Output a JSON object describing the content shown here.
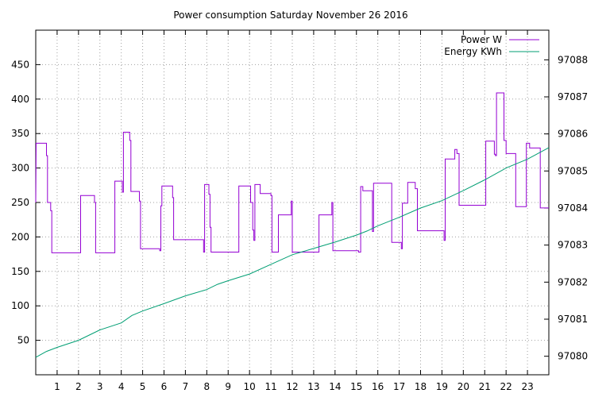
{
  "chart_data": {
    "type": "line",
    "title": "Power consumption Saturday November 26 2016",
    "xlabel": "",
    "ylabel": "",
    "y2label": "",
    "grid": true,
    "legend_position": "top-right",
    "xlim": [
      0,
      24
    ],
    "ylim": [
      0,
      500
    ],
    "y2lim": [
      97079.5,
      97088.8
    ],
    "x_ticks": [
      "1",
      "2",
      "3",
      "4",
      "5",
      "6",
      "7",
      "8",
      "9",
      "10",
      "11",
      "12",
      "13",
      "14",
      "15",
      "16",
      "17",
      "18",
      "19",
      "20",
      "21",
      "22",
      "23"
    ],
    "y_ticks": [
      "50",
      "100",
      "150",
      "200",
      "250",
      "300",
      "350",
      "400",
      "450"
    ],
    "y2_ticks": [
      "97080",
      "97081",
      "97082",
      "97083",
      "97084",
      "97085",
      "97086",
      "97087",
      "97088"
    ],
    "series": [
      {
        "name": "Power W",
        "axis": "y",
        "color": "#9400d3",
        "points": [
          [
            0.0,
            250
          ],
          [
            0.02,
            336
          ],
          [
            0.5,
            336
          ],
          [
            0.5,
            318
          ],
          [
            0.55,
            318
          ],
          [
            0.55,
            250
          ],
          [
            0.7,
            250
          ],
          [
            0.7,
            238
          ],
          [
            0.75,
            238
          ],
          [
            0.75,
            177
          ],
          [
            2.1,
            177
          ],
          [
            2.1,
            260
          ],
          [
            2.75,
            260
          ],
          [
            2.75,
            250
          ],
          [
            2.8,
            250
          ],
          [
            2.8,
            177
          ],
          [
            3.7,
            177
          ],
          [
            3.7,
            281
          ],
          [
            4.05,
            281
          ],
          [
            4.05,
            265
          ],
          [
            4.1,
            265
          ],
          [
            4.1,
            352
          ],
          [
            4.4,
            352
          ],
          [
            4.4,
            340
          ],
          [
            4.45,
            340
          ],
          [
            4.45,
            266
          ],
          [
            4.85,
            266
          ],
          [
            4.85,
            252
          ],
          [
            4.9,
            252
          ],
          [
            4.9,
            183
          ],
          [
            5.8,
            183
          ],
          [
            5.8,
            180
          ],
          [
            5.85,
            180
          ],
          [
            5.85,
            245
          ],
          [
            5.9,
            245
          ],
          [
            5.9,
            274
          ],
          [
            6.4,
            274
          ],
          [
            6.4,
            257
          ],
          [
            6.45,
            257
          ],
          [
            6.45,
            196
          ],
          [
            7.85,
            196
          ],
          [
            7.85,
            178
          ],
          [
            7.9,
            178
          ],
          [
            7.9,
            276
          ],
          [
            8.1,
            276
          ],
          [
            8.1,
            262
          ],
          [
            8.15,
            262
          ],
          [
            8.15,
            214
          ],
          [
            8.2,
            214
          ],
          [
            8.2,
            178
          ],
          [
            9.5,
            178
          ],
          [
            9.5,
            274
          ],
          [
            10.05,
            274
          ],
          [
            10.05,
            250
          ],
          [
            10.15,
            250
          ],
          [
            10.15,
            210
          ],
          [
            10.2,
            210
          ],
          [
            10.2,
            195
          ],
          [
            10.25,
            195
          ],
          [
            10.25,
            276
          ],
          [
            10.5,
            276
          ],
          [
            10.5,
            263
          ],
          [
            11,
            263
          ],
          [
            11,
            260
          ],
          [
            11.05,
            260
          ],
          [
            11.05,
            178
          ],
          [
            11.35,
            178
          ],
          [
            11.35,
            232
          ],
          [
            11.95,
            232
          ],
          [
            11.95,
            252
          ],
          [
            12.0,
            252
          ],
          [
            12.0,
            178
          ],
          [
            13.25,
            178
          ],
          [
            13.25,
            232
          ],
          [
            13.85,
            232
          ],
          [
            13.85,
            250
          ],
          [
            13.9,
            250
          ],
          [
            13.9,
            180
          ],
          [
            15.1,
            180
          ],
          [
            15.1,
            178
          ],
          [
            15.2,
            178
          ],
          [
            15.2,
            273
          ],
          [
            15.3,
            273
          ],
          [
            15.3,
            267
          ],
          [
            15.75,
            267
          ],
          [
            15.75,
            208
          ],
          [
            15.8,
            208
          ],
          [
            15.8,
            278
          ],
          [
            16.65,
            278
          ],
          [
            16.65,
            192
          ],
          [
            17.1,
            192
          ],
          [
            17.1,
            183
          ],
          [
            17.15,
            183
          ],
          [
            17.15,
            249
          ],
          [
            17.4,
            249
          ],
          [
            17.4,
            279
          ],
          [
            17.75,
            279
          ],
          [
            17.75,
            270
          ],
          [
            17.8,
            270
          ],
          [
            17.8,
            270
          ],
          [
            17.85,
            270
          ],
          [
            17.85,
            209
          ],
          [
            19.1,
            209
          ],
          [
            19.1,
            195
          ],
          [
            19.15,
            195
          ],
          [
            19.15,
            313
          ],
          [
            19.6,
            313
          ],
          [
            19.6,
            327
          ],
          [
            19.7,
            327
          ],
          [
            19.7,
            321
          ],
          [
            19.8,
            321
          ],
          [
            19.8,
            246
          ],
          [
            21.05,
            246
          ],
          [
            21.05,
            339
          ],
          [
            21.45,
            339
          ],
          [
            21.45,
            320
          ],
          [
            21.5,
            320
          ],
          [
            21.5,
            318
          ],
          [
            21.55,
            318
          ],
          [
            21.55,
            409
          ],
          [
            21.9,
            409
          ],
          [
            21.9,
            340
          ],
          [
            22.0,
            340
          ],
          [
            22.0,
            321
          ],
          [
            22.45,
            321
          ],
          [
            22.45,
            244
          ],
          [
            22.95,
            244
          ],
          [
            22.95,
            336
          ],
          [
            23.1,
            336
          ],
          [
            23.1,
            329
          ],
          [
            23.6,
            329
          ],
          [
            23.6,
            242
          ],
          [
            24,
            242
          ]
        ]
      },
      {
        "name": "Energy KWh",
        "axis": "y2",
        "color": "#009e73",
        "points": [
          [
            0,
            97079.97
          ],
          [
            0.5,
            97080.13
          ],
          [
            1.0,
            97080.24
          ],
          [
            2.0,
            97080.43
          ],
          [
            3.0,
            97080.71
          ],
          [
            4.0,
            97080.9
          ],
          [
            4.5,
            97081.1
          ],
          [
            5.0,
            97081.22
          ],
          [
            6.0,
            97081.42
          ],
          [
            7.0,
            97081.63
          ],
          [
            8.0,
            97081.8
          ],
          [
            8.5,
            97081.94
          ],
          [
            9.0,
            97082.04
          ],
          [
            10.0,
            97082.22
          ],
          [
            11.0,
            97082.48
          ],
          [
            12.0,
            97082.74
          ],
          [
            13.0,
            97082.91
          ],
          [
            14.0,
            97083.08
          ],
          [
            15.0,
            97083.27
          ],
          [
            15.5,
            97083.38
          ],
          [
            16.0,
            97083.52
          ],
          [
            17.0,
            97083.75
          ],
          [
            18.0,
            97084.0
          ],
          [
            19.0,
            97084.2
          ],
          [
            20.0,
            97084.47
          ],
          [
            21.0,
            97084.76
          ],
          [
            22.0,
            97085.08
          ],
          [
            23.0,
            97085.32
          ],
          [
            24.0,
            97085.63
          ]
        ]
      }
    ]
  }
}
